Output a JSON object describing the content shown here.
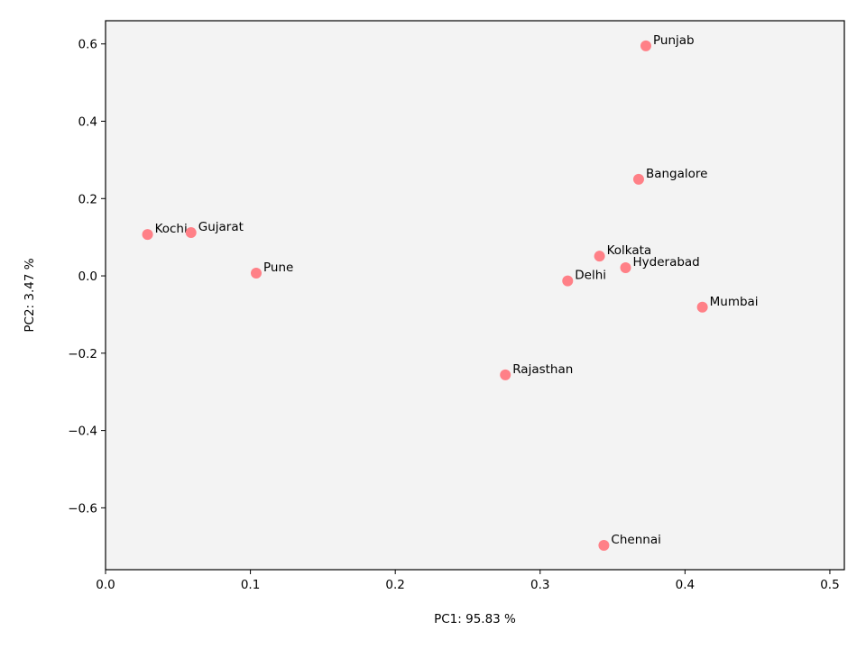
{
  "chart_data": {
    "type": "scatter",
    "xlabel": "PC1: 95.83 %",
    "ylabel": "PC2: 3.47 %",
    "xlim": [
      0.0,
      0.51
    ],
    "ylim": [
      -0.76,
      0.66
    ],
    "xticks": [
      0.0,
      0.1,
      0.2,
      0.3,
      0.4,
      0.5
    ],
    "xtick_labels": [
      "0.0",
      "0.1",
      "0.2",
      "0.3",
      "0.4",
      "0.5"
    ],
    "yticks": [
      -0.6,
      -0.4,
      -0.2,
      0.0,
      0.2,
      0.4,
      0.6
    ],
    "ytick_labels": [
      "−0.6",
      "−0.4",
      "−0.2",
      "0.0",
      "0.2",
      "0.4",
      "0.6"
    ],
    "grid": false,
    "plot_background": "#f3f3f3",
    "point_color": "#ff8087",
    "points": [
      {
        "label": "Punjab",
        "x": 0.373,
        "y": 0.595
      },
      {
        "label": "Bangalore",
        "x": 0.368,
        "y": 0.25
      },
      {
        "label": "Kochi",
        "x": 0.029,
        "y": 0.107
      },
      {
        "label": "Gujarat",
        "x": 0.059,
        "y": 0.112
      },
      {
        "label": "Pune",
        "x": 0.104,
        "y": 0.007
      },
      {
        "label": "Kolkata",
        "x": 0.341,
        "y": 0.051
      },
      {
        "label": "Hyderabad",
        "x": 0.359,
        "y": 0.021
      },
      {
        "label": "Delhi",
        "x": 0.319,
        "y": -0.013
      },
      {
        "label": "Mumbai",
        "x": 0.412,
        "y": -0.081
      },
      {
        "label": "Rajasthan",
        "x": 0.276,
        "y": -0.256
      },
      {
        "label": "Chennai",
        "x": 0.344,
        "y": -0.697
      }
    ]
  }
}
